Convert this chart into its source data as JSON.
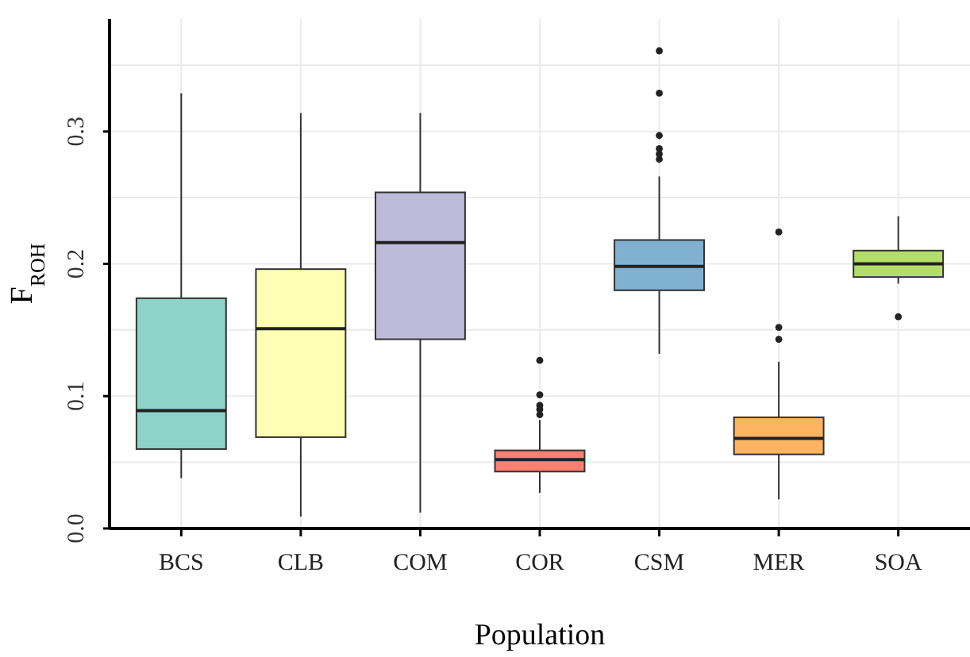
{
  "chart_data": {
    "type": "box",
    "xlabel": "Population",
    "ylabel": "F$_{ROH}$",
    "categories": [
      "BCS",
      "CLB",
      "COM",
      "COR",
      "CSM",
      "MER",
      "SOA"
    ],
    "colors": [
      "#8dd3c7",
      "#ffffb3",
      "#bebada",
      "#fb8072",
      "#80b1d3",
      "#fdb462",
      "#b3de69"
    ],
    "boxes": [
      {
        "low": 0.038,
        "q1": 0.06,
        "median": 0.089,
        "q3": 0.174,
        "high": 0.329
      },
      {
        "low": 0.009,
        "q1": 0.069,
        "median": 0.151,
        "q3": 0.196,
        "high": 0.314
      },
      {
        "low": 0.012,
        "q1": 0.143,
        "median": 0.216,
        "q3": 0.254,
        "high": 0.314
      },
      {
        "low": 0.027,
        "q1": 0.043,
        "median": 0.052,
        "q3": 0.059,
        "high": 0.082,
        "outliers": [
          0.127,
          0.101,
          0.093,
          0.09,
          0.086
        ]
      },
      {
        "low": 0.132,
        "q1": 0.18,
        "median": 0.198,
        "q3": 0.218,
        "high": 0.266,
        "outliers": [
          0.361,
          0.329,
          0.297,
          0.287,
          0.283,
          0.279
        ]
      },
      {
        "low": 0.022,
        "q1": 0.056,
        "median": 0.068,
        "q3": 0.084,
        "high": 0.126,
        "outliers": [
          0.224,
          0.152,
          0.143
        ]
      },
      {
        "low": 0.185,
        "q1": 0.19,
        "median": 0.2,
        "q3": 0.21,
        "high": 0.236,
        "outliers": [
          0.16
        ]
      }
    ],
    "ylim": [
      0,
      0.385
    ],
    "yticks": [
      {
        "value": 0,
        "label": "0.0"
      },
      {
        "value": 0.05,
        "label": null
      },
      {
        "value": 0.1,
        "label": "0.1"
      },
      {
        "value": 0.15,
        "label": null
      },
      {
        "value": 0.2,
        "label": "0.2"
      },
      {
        "value": 0.25,
        "label": null
      },
      {
        "value": 0.3,
        "label": "0.3"
      },
      {
        "value": 0.35,
        "label": null
      }
    ],
    "grid": true
  }
}
